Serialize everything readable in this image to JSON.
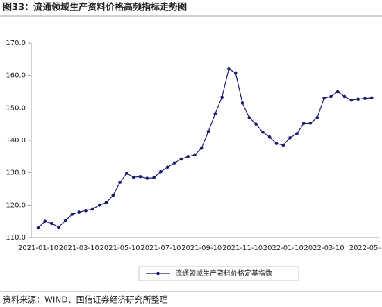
{
  "chart_data": {
    "type": "line",
    "title": "图33：流通领域生产资料价格高频指标走势图",
    "source": "资料来源：WIND、国信证券经济研究所整理",
    "categories": [
      "2021-01-10",
      null,
      null,
      null,
      null,
      null,
      "2021-03-10",
      null,
      null,
      null,
      null,
      null,
      "2021-05-10",
      null,
      null,
      null,
      null,
      null,
      "2021-07-10",
      null,
      null,
      null,
      null,
      null,
      "2021-09-10",
      null,
      null,
      null,
      null,
      null,
      "2021-11-10",
      null,
      null,
      null,
      null,
      null,
      "2022-01-10",
      null,
      null,
      null,
      null,
      null,
      "2022-03-10",
      null,
      null,
      null,
      null,
      null,
      "2022-05-",
      null
    ],
    "series": [
      {
        "name": "流通领域生产资料价格定基指数",
        "color": "#1a1a6e",
        "values": [
          113,
          115,
          114.3,
          113.2,
          115.2,
          117.2,
          117.8,
          118.3,
          118.8,
          120,
          120.8,
          123,
          127,
          129.8,
          128.6,
          128.8,
          128.3,
          128.5,
          130.3,
          131.7,
          133,
          134.2,
          135,
          135.5,
          137.6,
          142.7,
          148.2,
          153.3,
          162,
          160.8,
          151.5,
          147,
          145,
          142.5,
          141,
          139,
          138.5,
          140.8,
          142,
          145.2,
          145.3,
          147,
          153,
          153.5,
          155,
          153.5,
          152.4,
          152.7,
          152.9,
          153.1
        ]
      }
    ],
    "ylim": [
      110,
      170
    ],
    "yticks": [
      {
        "value": 110,
        "label": "110.0"
      },
      {
        "value": 120,
        "label": "120.0"
      },
      {
        "value": 130,
        "label": "130.0"
      },
      {
        "value": 140,
        "label": "140.0"
      },
      {
        "value": 150,
        "label": "150.0"
      },
      {
        "value": 160,
        "label": "160.0"
      },
      {
        "value": 170,
        "label": "170.0"
      }
    ],
    "grid": false
  }
}
